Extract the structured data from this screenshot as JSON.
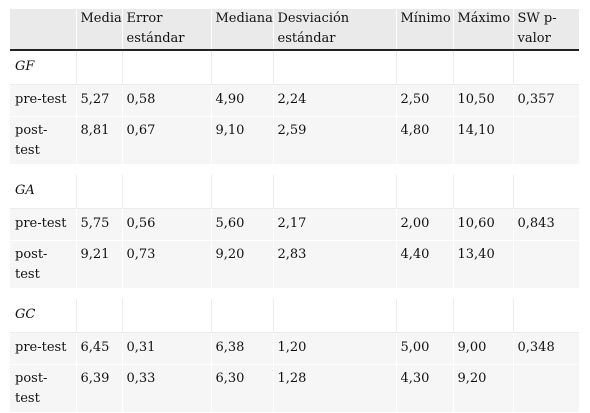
{
  "headers": [
    "",
    "Media",
    "Error estándar",
    "Mediana",
    "Desviación estándar",
    "Mínimo",
    "Máximo",
    "SW p-valor"
  ],
  "groups": [
    {
      "name": "GF",
      "rows": [
        {
          "label": "pre-test",
          "values": [
            "5,27",
            "0,58",
            "4,90",
            "2,24",
            "2,50",
            "10,50",
            "0,357"
          ]
        },
        {
          "label": "post-test",
          "values": [
            "8,81",
            "0,67",
            "9,10",
            "2,59",
            "4,80",
            "14,10",
            ""
          ]
        }
      ]
    },
    {
      "name": "GA",
      "rows": [
        {
          "label": "pre-test",
          "values": [
            "5,75",
            "0,56",
            "5,60",
            "2,17",
            "2,00",
            "10,60",
            "0,843"
          ]
        },
        {
          "label": "post-test",
          "values": [
            "9,21",
            "0,73",
            "9,20",
            "2,83",
            "4,40",
            "13,40",
            ""
          ]
        }
      ]
    },
    {
      "name": "GC",
      "rows": [
        {
          "label": "pre-test",
          "values": [
            "6,45",
            "0,31",
            "6,38",
            "1,20",
            "5,00",
            "9,00",
            "0,348"
          ]
        },
        {
          "label": "post-test",
          "values": [
            "6,39",
            "0,33",
            "6,30",
            "1,28",
            "4,30",
            "9,20",
            ""
          ]
        }
      ]
    }
  ]
}
